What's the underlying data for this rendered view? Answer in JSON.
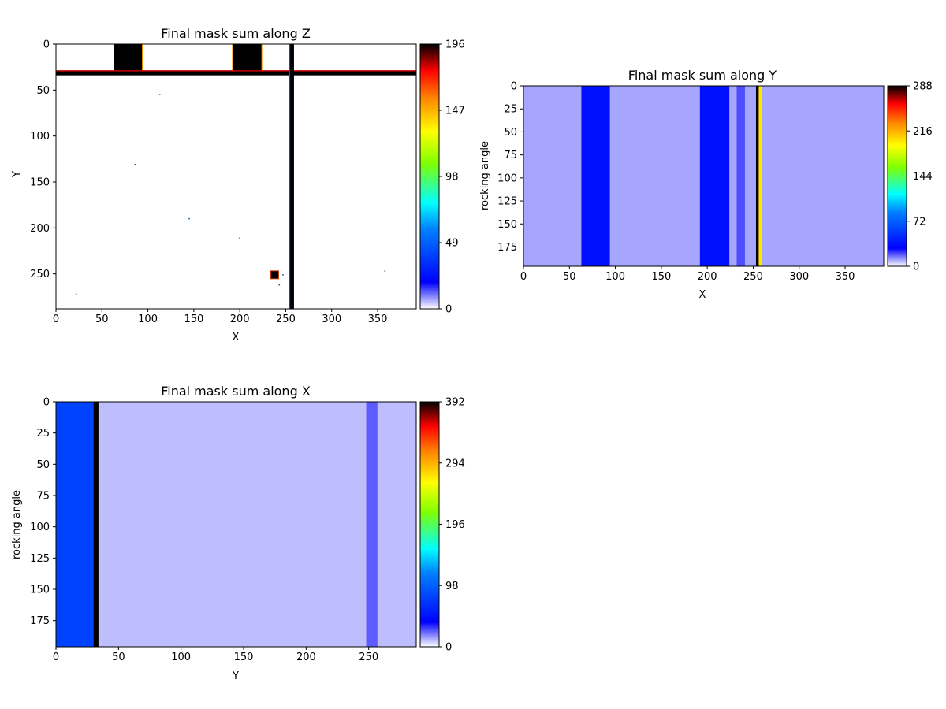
{
  "chart_data": [
    {
      "id": "z",
      "type": "heatmap",
      "title": "Final mask sum along Z",
      "xlabel": "X",
      "ylabel": "Y",
      "xlim": [
        0,
        392
      ],
      "ylim": [
        288,
        0
      ],
      "xticks": [
        "0",
        "50",
        "100",
        "150",
        "200",
        "250",
        "300",
        "350"
      ],
      "yticks": [
        "0",
        "50",
        "100",
        "150",
        "200",
        "250"
      ],
      "colorbar": {
        "min": 0,
        "max": 196,
        "ticks": [
          "0",
          "49",
          "98",
          "147",
          "196"
        ]
      },
      "features": [
        {
          "kind": "block",
          "x": [
            63,
            94
          ],
          "y": [
            0,
            30
          ],
          "value": 196
        },
        {
          "kind": "block",
          "x": [
            192,
            224
          ],
          "y": [
            0,
            30
          ],
          "value": 196
        },
        {
          "kind": "horizontal-band",
          "y": [
            29,
            34
          ],
          "value": 196
        },
        {
          "kind": "vertical-band",
          "x": [
            254,
            259
          ],
          "value": 196
        },
        {
          "kind": "square",
          "x": 238,
          "y": 251,
          "value": 196
        },
        {
          "kind": "dots",
          "points": [
            [
              113,
              55
            ],
            [
              86,
              131
            ],
            [
              145,
              190
            ],
            [
              200,
              211
            ],
            [
              247,
              251
            ],
            [
              243,
              262
            ],
            [
              358,
              247
            ],
            [
              22,
              272
            ]
          ]
        }
      ]
    },
    {
      "id": "y",
      "type": "heatmap",
      "title": "Final mask sum along Y",
      "xlabel": "X",
      "ylabel": "rocking angle",
      "xlim": [
        0,
        392
      ],
      "ylim": [
        196,
        0
      ],
      "xticks": [
        "0",
        "50",
        "100",
        "150",
        "200",
        "250",
        "300",
        "350"
      ],
      "yticks": [
        "0",
        "25",
        "50",
        "75",
        "100",
        "125",
        "150",
        "175"
      ],
      "colorbar": {
        "min": 0,
        "max": 288,
        "ticks": [
          "0",
          "72",
          "144",
          "216",
          "288"
        ]
      },
      "background_value": 10,
      "columns": [
        {
          "x": [
            63,
            94
          ],
          "value": 36
        },
        {
          "x": [
            192,
            224
          ],
          "value": 36
        },
        {
          "x": [
            232,
            241
          ],
          "value": 20
        },
        {
          "x": [
            253,
            256
          ],
          "value": 288
        },
        {
          "x": [
            256,
            259
          ],
          "value": 200
        }
      ]
    },
    {
      "id": "x",
      "type": "heatmap",
      "title": "Final mask sum along X",
      "xlabel": "Y",
      "ylabel": "rocking angle",
      "xlim": [
        0,
        288
      ],
      "ylim": [
        196,
        0
      ],
      "xticks": [
        "0",
        "50",
        "100",
        "150",
        "200",
        "250"
      ],
      "yticks": [
        "0",
        "25",
        "50",
        "75",
        "100",
        "125",
        "150",
        "175"
      ],
      "colorbar": {
        "min": 0,
        "max": 392,
        "ticks": [
          "0",
          "98",
          "196",
          "294",
          "392"
        ]
      },
      "background_value": 10,
      "columns": [
        {
          "x": [
            0,
            30
          ],
          "value": 80
        },
        {
          "x": [
            30,
            34
          ],
          "value": 392
        },
        {
          "x": [
            34,
            35
          ],
          "value": 240
        },
        {
          "x": [
            248,
            257
          ],
          "value": 25
        }
      ]
    }
  ]
}
